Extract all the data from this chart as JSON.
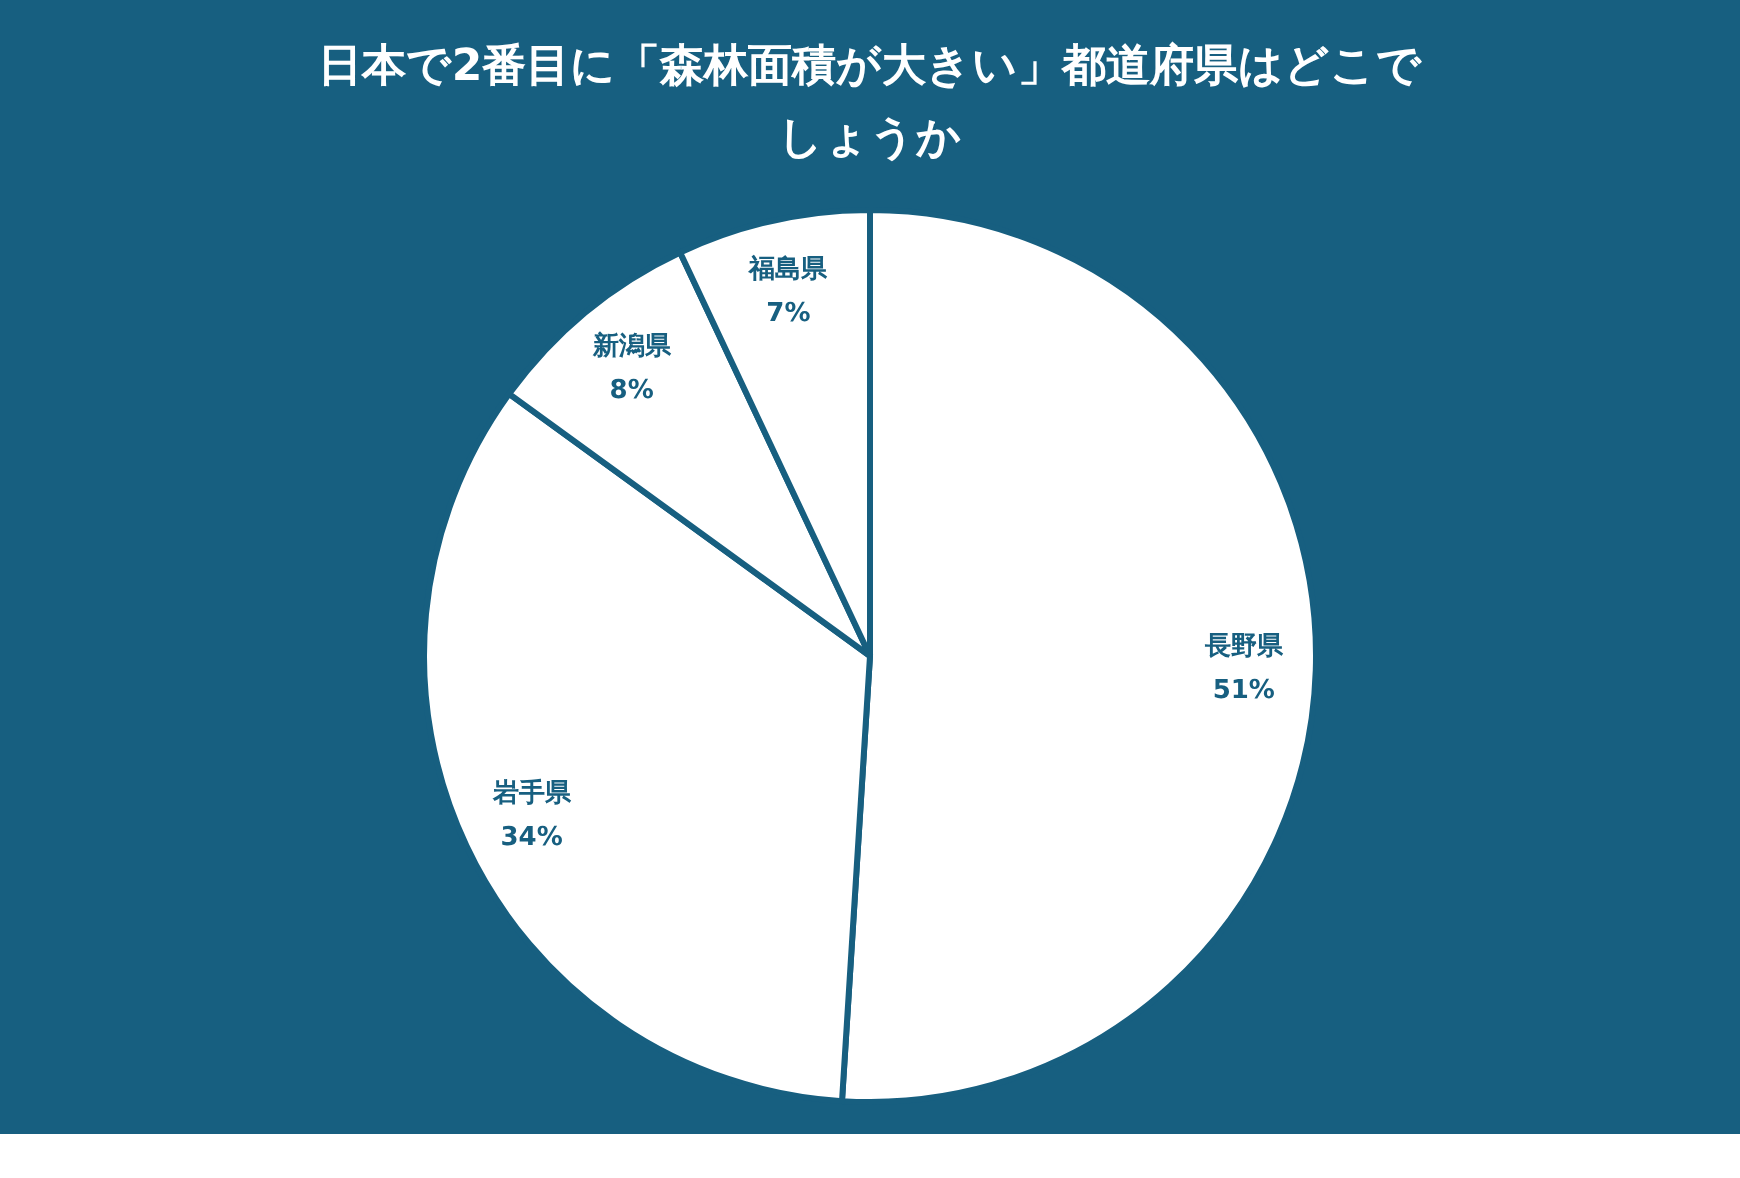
{
  "chart_data": {
    "type": "pie",
    "title": "日本で2番目に「森林面積が大きい」都道府県はどこでしょうか",
    "categories": [
      "長野県",
      "岩手県",
      "新潟県",
      "福島県"
    ],
    "values": [
      51,
      34,
      8,
      7
    ],
    "value_labels": [
      "51%",
      "34%",
      "8%",
      "7%"
    ],
    "colors": [
      "#ffffff",
      "#ffffff",
      "#ffffff",
      "#ffffff"
    ],
    "legend": false
  }
}
